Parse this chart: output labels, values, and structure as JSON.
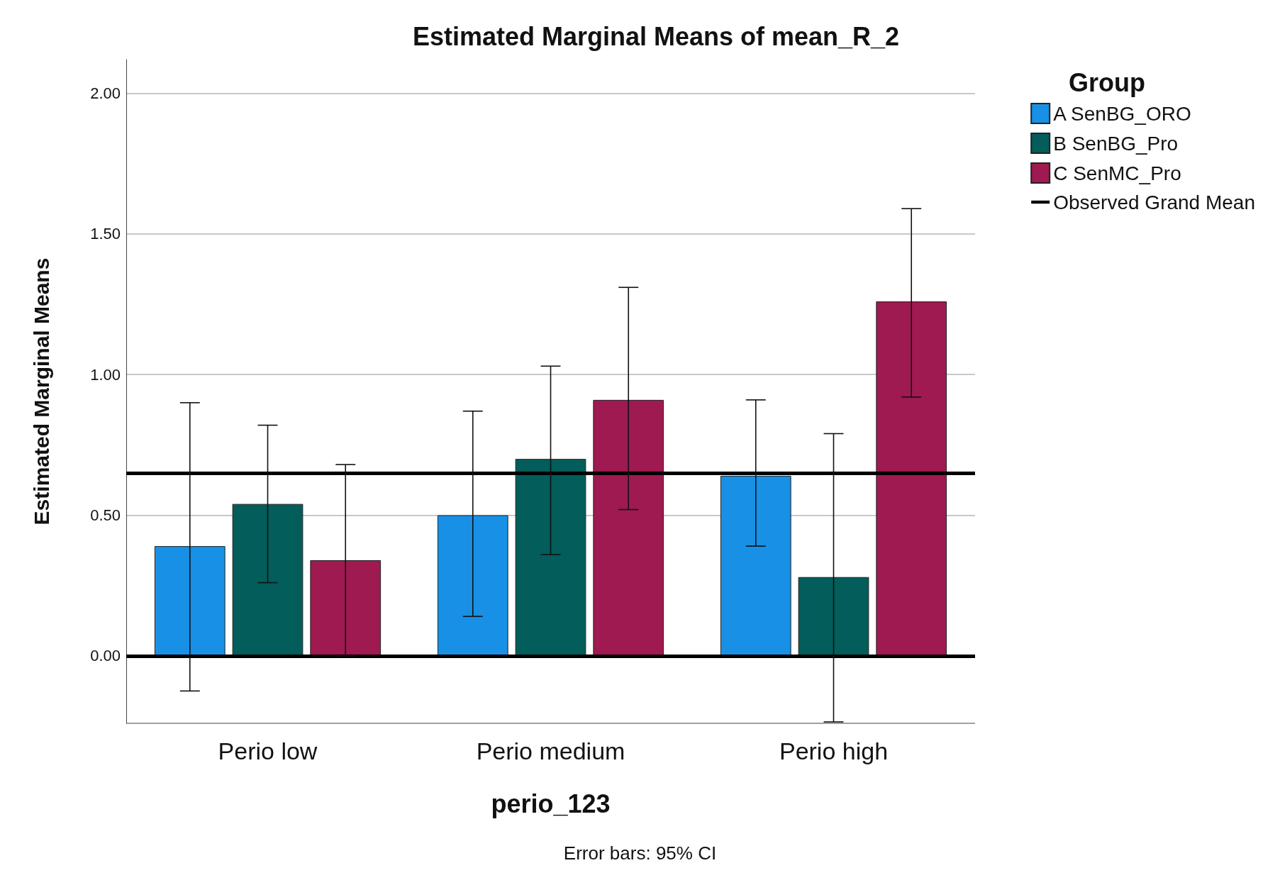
{
  "chart_data": {
    "type": "bar",
    "title": "Estimated Marginal Means of mean_R_2",
    "xlabel": "perio_123",
    "ylabel": "Estimated Marginal Means",
    "legend_title": "Group",
    "categories": [
      "Perio low",
      "Perio medium",
      "Perio high"
    ],
    "series": [
      {
        "name": "A SenBG_ORO",
        "color": "#1790e6",
        "values": [
          0.39,
          0.5,
          0.64
        ],
        "errors": [
          [
            -0.125,
            0.9
          ],
          [
            0.14,
            0.87
          ],
          [
            0.39,
            0.91
          ]
        ]
      },
      {
        "name": "B SenBG_Pro",
        "color": "#025d5b",
        "values": [
          0.54,
          0.7,
          0.28
        ],
        "errors": [
          [
            0.26,
            0.82
          ],
          [
            0.36,
            1.03
          ],
          [
            -0.235,
            0.79
          ]
        ]
      },
      {
        "name": "C SenMC_Pro",
        "color": "#9e1a50",
        "values": [
          0.34,
          0.91,
          1.26
        ],
        "errors": [
          [
            0.0,
            0.68
          ],
          [
            0.52,
            1.31
          ],
          [
            0.92,
            1.59
          ]
        ]
      }
    ],
    "ylim": [
      -0.24,
      2.12
    ],
    "yticks": [
      {
        "value": 0,
        "label": "0.00"
      },
      {
        "value": 0.5,
        "label": "0.50"
      },
      {
        "value": 1,
        "label": "1.00"
      },
      {
        "value": 1.5,
        "label": "1.50"
      },
      {
        "value": 2,
        "label": "2.00"
      }
    ],
    "grid": "y",
    "legend": "top right",
    "ref_lines": [
      {
        "axis": "y",
        "value": 0.65,
        "label": "Observed Grand Mean",
        "color": "#000000"
      },
      {
        "axis": "y",
        "value": 0,
        "label": null,
        "color": "#000000"
      }
    ],
    "annotations": [
      "Error bars: 95% CI"
    ]
  }
}
